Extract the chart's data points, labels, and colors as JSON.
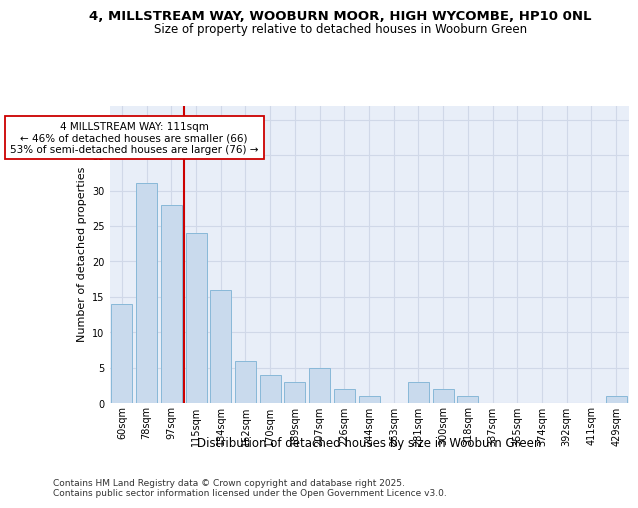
{
  "title1": "4, MILLSTREAM WAY, WOOBURN MOOR, HIGH WYCOMBE, HP10 0NL",
  "title2": "Size of property relative to detached houses in Wooburn Green",
  "xlabel": "Distribution of detached houses by size in Wooburn Green",
  "ylabel": "Number of detached properties",
  "categories": [
    "60sqm",
    "78sqm",
    "97sqm",
    "115sqm",
    "134sqm",
    "152sqm",
    "170sqm",
    "189sqm",
    "207sqm",
    "226sqm",
    "244sqm",
    "263sqm",
    "281sqm",
    "300sqm",
    "318sqm",
    "337sqm",
    "355sqm",
    "374sqm",
    "392sqm",
    "411sqm",
    "429sqm"
  ],
  "values": [
    14,
    31,
    28,
    24,
    16,
    6,
    4,
    3,
    5,
    2,
    1,
    0,
    3,
    2,
    1,
    0,
    0,
    0,
    0,
    0,
    1
  ],
  "bar_color": "#c9daed",
  "bar_edge_color": "#88b8d8",
  "vline_x": 2.5,
  "vline_color": "#cc0000",
  "annotation_line1": "4 MILLSTREAM WAY: 111sqm",
  "annotation_line2": "← 46% of detached houses are smaller (66)",
  "annotation_line3": "53% of semi-detached houses are larger (76) →",
  "annotation_box_facecolor": "#ffffff",
  "annotation_box_edgecolor": "#cc0000",
  "ylim": [
    0,
    42
  ],
  "yticks": [
    0,
    5,
    10,
    15,
    20,
    25,
    30,
    35,
    40
  ],
  "grid_color": "#d0d8e8",
  "plot_bg": "#e8eef8",
  "footer": "Contains HM Land Registry data © Crown copyright and database right 2025.\nContains public sector information licensed under the Open Government Licence v3.0.",
  "title1_fontsize": 9.5,
  "title2_fontsize": 8.5,
  "tick_fontsize": 7,
  "ylabel_fontsize": 8,
  "xlabel_fontsize": 8.5,
  "footer_fontsize": 6.5,
  "annot_fontsize": 7.5
}
